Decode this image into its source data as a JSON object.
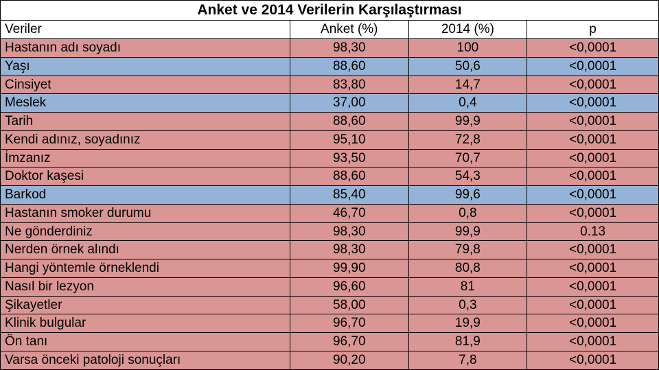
{
  "table": {
    "title": "Anket ve 2014 Verilerin Karşılaştırması",
    "columns": [
      "Veriler",
      "Anket (%)",
      "2014 (%)",
      "p"
    ],
    "col_align": [
      "left",
      "center",
      "center",
      "center"
    ],
    "row_colors": {
      "pink": "#d99694",
      "blue": "#95b3d7"
    },
    "border_color": "#000000",
    "background_color": "#ffffff",
    "title_fontsize": 21,
    "title_fontweight": 700,
    "cell_fontsize": 19,
    "font_family": "Arial",
    "rows": [
      {
        "color": "pink",
        "cells": [
          "Hastanın adı soyadı",
          "98,30",
          "100",
          "<0,0001"
        ]
      },
      {
        "color": "blue",
        "cells": [
          "Yaşı",
          "88,60",
          "50,6",
          "<0,0001"
        ]
      },
      {
        "color": "pink",
        "cells": [
          " Cinsiyet",
          "83,80",
          "14,7",
          "<0,0001"
        ]
      },
      {
        "color": "blue",
        "cells": [
          "Meslek",
          "37,00",
          "0,4",
          "<0,0001"
        ]
      },
      {
        "color": "pink",
        "cells": [
          "Tarih",
          "88,60",
          "99,9",
          "<0,0001"
        ]
      },
      {
        "color": "pink",
        "cells": [
          " Kendi adınız, soyadınız",
          "95,10",
          "72,8",
          "<0,0001"
        ]
      },
      {
        "color": "pink",
        "cells": [
          " İmzanız",
          "93,50",
          "70,7",
          "<0,0001"
        ]
      },
      {
        "color": "pink",
        "cells": [
          "Doktor kaşesi",
          "88,60",
          "54,3",
          "<0,0001"
        ]
      },
      {
        "color": "blue",
        "cells": [
          "Barkod",
          "85,40",
          "99,6",
          "<0,0001"
        ]
      },
      {
        "color": "pink",
        "cells": [
          " Hastanın smoker durumu",
          "46,70",
          "0,8",
          "<0,0001"
        ]
      },
      {
        "color": "pink",
        "cells": [
          "Ne gönderdiniz",
          "98,30",
          "99,9",
          "0.13"
        ]
      },
      {
        "color": "pink",
        "cells": [
          " Nerden örnek alındı",
          "98,30",
          "79,8",
          "<0,0001"
        ]
      },
      {
        "color": "pink",
        "cells": [
          "Hangi yöntemle örneklendi",
          "99,90",
          "80,8",
          "<0,0001"
        ]
      },
      {
        "color": "pink",
        "cells": [
          " Nasıl bir lezyon",
          "96,60",
          "81",
          "<0,0001"
        ]
      },
      {
        "color": "pink",
        "cells": [
          " Şikayetler",
          "58,00",
          "0,3",
          "<0,0001"
        ]
      },
      {
        "color": "pink",
        "cells": [
          "Klinik bulgular",
          "96,70",
          "19,9",
          "<0,0001"
        ]
      },
      {
        "color": "pink",
        "cells": [
          " Ön tanı",
          "96,70",
          "81,9",
          "<0,0001"
        ]
      },
      {
        "color": "pink",
        "cells": [
          " Varsa önceki patoloji sonuçları",
          "90,20",
          "7,8",
          "<0,0001"
        ]
      }
    ]
  }
}
